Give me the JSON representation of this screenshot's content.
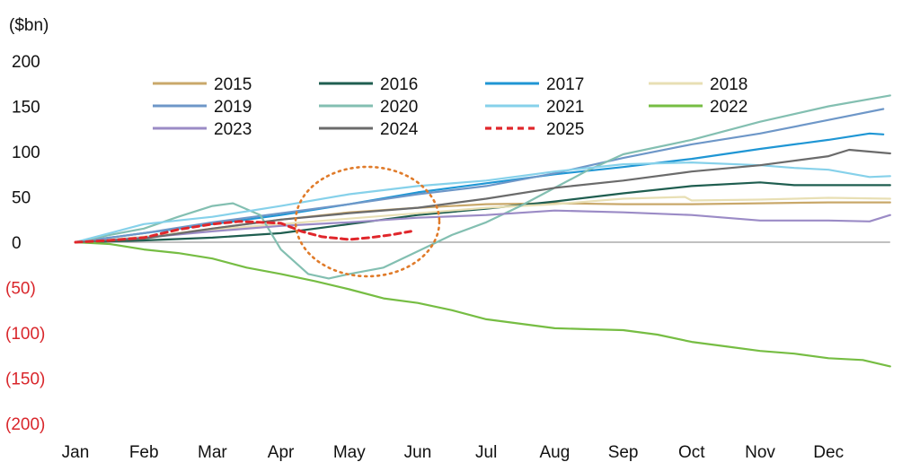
{
  "chart_data": {
    "type": "line",
    "ylabel": "($bn)",
    "ylim": [
      -200,
      200
    ],
    "y_ticks": [
      {
        "value": 200,
        "label": "200"
      },
      {
        "value": 150,
        "label": "150"
      },
      {
        "value": 100,
        "label": "100"
      },
      {
        "value": 50,
        "label": "50"
      },
      {
        "value": 0,
        "label": "0"
      },
      {
        "value": -50,
        "label": "(50)"
      },
      {
        "value": -100,
        "label": "(100)"
      },
      {
        "value": -150,
        "label": "(150)"
      },
      {
        "value": -200,
        "label": "(200)"
      }
    ],
    "x_ticks": [
      "Jan",
      "Feb",
      "Mar",
      "Apr",
      "May",
      "Jun",
      "Jul",
      "Aug",
      "Sep",
      "Oct",
      "Nov",
      "Dec"
    ],
    "xlim": [
      0,
      11.9
    ],
    "legend_position": "top",
    "annotation": "dotted-circle around May 2020-2025 region",
    "series": [
      {
        "name": "2015",
        "color": "#c9a86a",
        "dashed": false,
        "points": [
          [
            0,
            0
          ],
          [
            1,
            5
          ],
          [
            2,
            15
          ],
          [
            3,
            25
          ],
          [
            4,
            33
          ],
          [
            5,
            38
          ],
          [
            6,
            42
          ],
          [
            7,
            43
          ],
          [
            8,
            42
          ],
          [
            9,
            42
          ],
          [
            10,
            43
          ],
          [
            11,
            44
          ],
          [
            11.9,
            44
          ]
        ]
      },
      {
        "name": "2016",
        "color": "#1f5e50",
        "dashed": false,
        "points": [
          [
            0,
            0
          ],
          [
            1,
            2
          ],
          [
            2,
            5
          ],
          [
            3,
            10
          ],
          [
            4,
            20
          ],
          [
            5,
            30
          ],
          [
            6,
            37
          ],
          [
            7,
            45
          ],
          [
            8,
            54
          ],
          [
            9,
            62
          ],
          [
            10,
            66
          ],
          [
            10.5,
            63
          ],
          [
            11,
            63
          ],
          [
            11.9,
            63
          ]
        ]
      },
      {
        "name": "2017",
        "color": "#1f96d4",
        "dashed": false,
        "points": [
          [
            0,
            0
          ],
          [
            1,
            10
          ],
          [
            2,
            20
          ],
          [
            3,
            30
          ],
          [
            4,
            42
          ],
          [
            5,
            55
          ],
          [
            6,
            65
          ],
          [
            7,
            75
          ],
          [
            8,
            83
          ],
          [
            9,
            92
          ],
          [
            10,
            103
          ],
          [
            11,
            113
          ],
          [
            11.6,
            120
          ],
          [
            11.8,
            119
          ]
        ]
      },
      {
        "name": "2018",
        "color": "#e8dfb4",
        "dashed": false,
        "points": [
          [
            0,
            0
          ],
          [
            1,
            6
          ],
          [
            2,
            14
          ],
          [
            3,
            20
          ],
          [
            4,
            26
          ],
          [
            5,
            32
          ],
          [
            6,
            38
          ],
          [
            7,
            42
          ],
          [
            8,
            48
          ],
          [
            8.9,
            50
          ],
          [
            9,
            46
          ],
          [
            10,
            47
          ],
          [
            11,
            49
          ],
          [
            11.9,
            48
          ]
        ]
      },
      {
        "name": "2019",
        "color": "#6e97c8",
        "dashed": false,
        "points": [
          [
            0,
            0
          ],
          [
            1,
            10
          ],
          [
            2,
            22
          ],
          [
            3,
            32
          ],
          [
            4,
            42
          ],
          [
            5,
            53
          ],
          [
            6,
            62
          ],
          [
            7,
            76
          ],
          [
            8,
            93
          ],
          [
            9,
            108
          ],
          [
            10,
            120
          ],
          [
            11,
            135
          ],
          [
            11.8,
            147
          ]
        ]
      },
      {
        "name": "2020",
        "color": "#83bfb1",
        "dashed": false,
        "points": [
          [
            0,
            0
          ],
          [
            0.5,
            8
          ],
          [
            1,
            15
          ],
          [
            1.5,
            28
          ],
          [
            2,
            40
          ],
          [
            2.3,
            43
          ],
          [
            2.7,
            30
          ],
          [
            3,
            -8
          ],
          [
            3.4,
            -35
          ],
          [
            3.7,
            -40
          ],
          [
            4,
            -35
          ],
          [
            4.5,
            -28
          ],
          [
            5,
            -10
          ],
          [
            5.5,
            8
          ],
          [
            6,
            22
          ],
          [
            6.5,
            40
          ],
          [
            7,
            60
          ],
          [
            7.5,
            80
          ],
          [
            8,
            97
          ],
          [
            9,
            113
          ],
          [
            10,
            133
          ],
          [
            11,
            150
          ],
          [
            11.9,
            162
          ]
        ]
      },
      {
        "name": "2021",
        "color": "#86d1ea",
        "dashed": false,
        "points": [
          [
            0,
            0
          ],
          [
            1,
            20
          ],
          [
            2,
            28
          ],
          [
            3,
            40
          ],
          [
            4,
            53
          ],
          [
            5,
            62
          ],
          [
            6,
            68
          ],
          [
            7,
            78
          ],
          [
            8,
            86
          ],
          [
            9,
            88
          ],
          [
            10,
            85
          ],
          [
            10.5,
            82
          ],
          [
            11,
            80
          ],
          [
            11.6,
            72
          ],
          [
            11.9,
            73
          ]
        ]
      },
      {
        "name": "2022",
        "color": "#76bd43",
        "dashed": false,
        "points": [
          [
            0,
            0
          ],
          [
            0.5,
            -2
          ],
          [
            1,
            -8
          ],
          [
            1.5,
            -12
          ],
          [
            2,
            -18
          ],
          [
            2.5,
            -28
          ],
          [
            3,
            -35
          ],
          [
            3.5,
            -43
          ],
          [
            4,
            -52
          ],
          [
            4.5,
            -62
          ],
          [
            5,
            -67
          ],
          [
            5.5,
            -75
          ],
          [
            6,
            -85
          ],
          [
            6.5,
            -90
          ],
          [
            7,
            -95
          ],
          [
            7.5,
            -96
          ],
          [
            8,
            -97
          ],
          [
            8.5,
            -102
          ],
          [
            9,
            -110
          ],
          [
            9.5,
            -115
          ],
          [
            10,
            -120
          ],
          [
            10.5,
            -123
          ],
          [
            11,
            -128
          ],
          [
            11.5,
            -130
          ],
          [
            11.9,
            -137
          ]
        ]
      },
      {
        "name": "2023",
        "color": "#9b8bc6",
        "dashed": false,
        "points": [
          [
            0,
            0
          ],
          [
            1,
            5
          ],
          [
            2,
            12
          ],
          [
            3,
            18
          ],
          [
            4,
            22
          ],
          [
            5,
            27
          ],
          [
            6,
            30
          ],
          [
            7,
            35
          ],
          [
            8,
            33
          ],
          [
            9,
            30
          ],
          [
            10,
            24
          ],
          [
            11,
            24
          ],
          [
            11.6,
            23
          ],
          [
            11.9,
            30
          ]
        ]
      },
      {
        "name": "2024",
        "color": "#6b6b6b",
        "dashed": false,
        "points": [
          [
            0,
            0
          ],
          [
            1,
            4
          ],
          [
            2,
            15
          ],
          [
            3,
            25
          ],
          [
            4,
            32
          ],
          [
            5,
            38
          ],
          [
            6,
            48
          ],
          [
            7,
            60
          ],
          [
            8,
            68
          ],
          [
            9,
            78
          ],
          [
            10,
            85
          ],
          [
            11,
            95
          ],
          [
            11.3,
            102
          ],
          [
            11.9,
            98
          ]
        ]
      },
      {
        "name": "2025",
        "color": "#e0262b",
        "dashed": true,
        "points": [
          [
            0,
            0
          ],
          [
            0.5,
            2
          ],
          [
            1,
            5
          ],
          [
            1.5,
            14
          ],
          [
            2,
            20
          ],
          [
            2.4,
            23
          ],
          [
            3,
            21
          ],
          [
            3.3,
            12
          ],
          [
            3.6,
            6
          ],
          [
            4,
            3
          ],
          [
            4.3,
            5
          ],
          [
            4.6,
            8
          ],
          [
            4.9,
            12
          ]
        ]
      }
    ]
  }
}
